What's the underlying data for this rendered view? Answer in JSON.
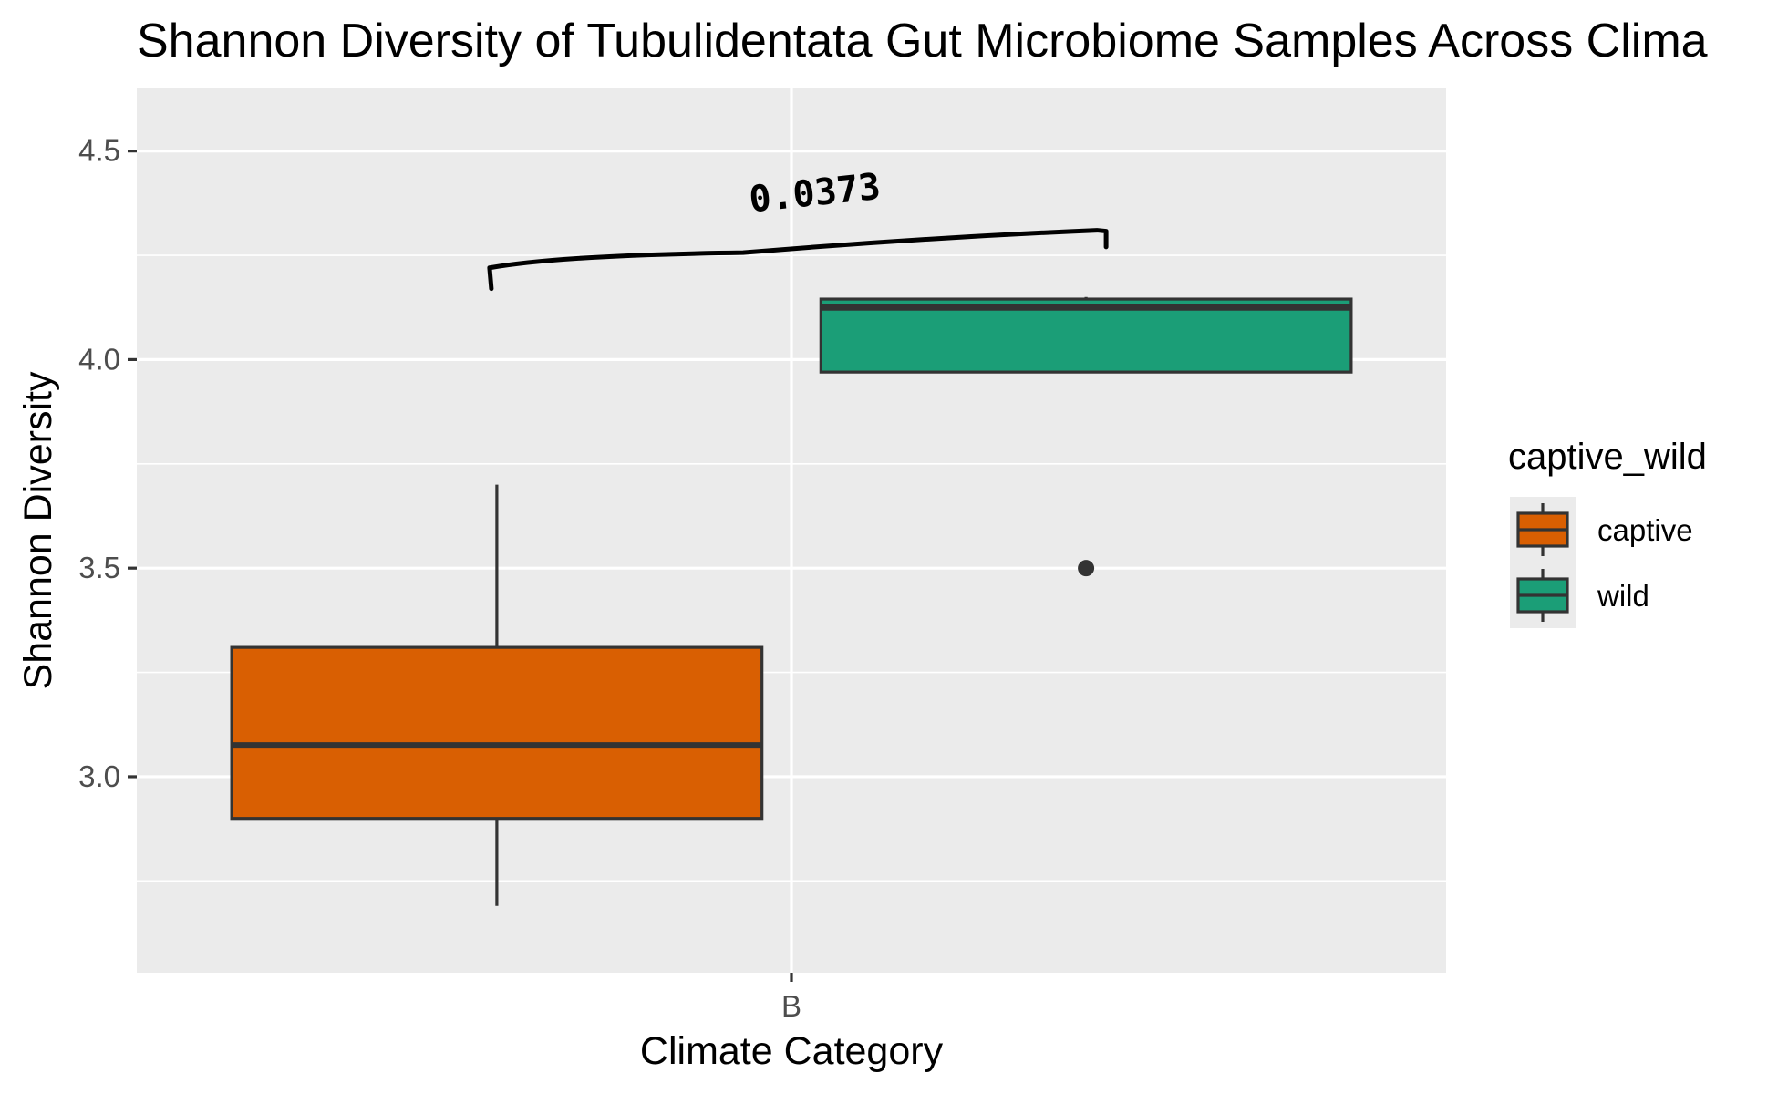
{
  "chart_data": {
    "type": "boxplot",
    "title": "Shannon Diversity of Tubulidentata Gut Microbiome Samples Across Clima",
    "xlabel": "Climate Category",
    "ylabel": "Shannon Diversity",
    "categories": [
      "B"
    ],
    "ylim": [
      2.53,
      4.65
    ],
    "yticks": [
      3.0,
      3.5,
      4.0,
      4.5
    ],
    "ytick_labels": [
      "3.0",
      "3.5",
      "4.0",
      "4.5"
    ],
    "grid": true,
    "legend": {
      "title": "captive_wild",
      "position": "right"
    },
    "series": [
      {
        "name": "captive",
        "color": "#D95F02",
        "category": "B",
        "min": 2.69,
        "q1": 2.9,
        "median": 3.075,
        "q3": 3.31,
        "max": 3.7,
        "outliers": []
      },
      {
        "name": "wild",
        "color": "#1B9E77",
        "category": "B",
        "min": 3.97,
        "q1": 3.97,
        "median": 4.125,
        "q3": 4.145,
        "max": 4.15,
        "outliers": [
          3.5
        ]
      }
    ],
    "annotations": [
      {
        "text": "0.0373",
        "type": "bracket",
        "between": [
          "captive",
          "wild"
        ]
      }
    ],
    "colors": {
      "panel_background": "#EBEBEB",
      "grid": "#FFFFFF",
      "box_outline": "#333333",
      "axis_text": "#4D4D4D"
    }
  }
}
